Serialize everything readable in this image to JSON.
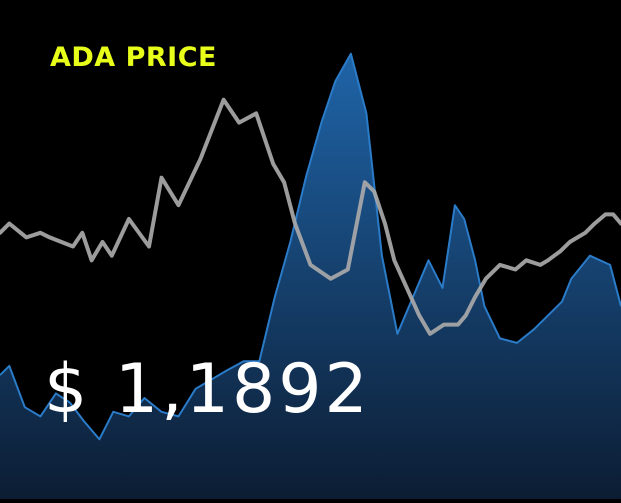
{
  "title": "ADA PRICE",
  "price_display": "$ 1,1892",
  "colors": {
    "background": "#000000",
    "title": "#e8ff1a",
    "price_text": "#ffffff",
    "area_top": "#1f64a8",
    "area_bottom": "#0c1d33",
    "area_stroke": "#2a7bc8",
    "line": "#a9a9a9"
  },
  "chart_data": {
    "type": "area",
    "title": "ADA PRICE",
    "xlim": [
      0,
      40
    ],
    "ylim": [
      0,
      100
    ],
    "grid": false,
    "legend": "none",
    "series": [
      {
        "kind": "area",
        "color": "#1f64a8",
        "x": [
          0,
          0.6,
          1.6,
          2.6,
          3.6,
          4.5,
          5.4,
          6.4,
          7.3,
          8.3,
          9.3,
          10.4,
          11.5,
          12.6,
          13.6,
          14.6,
          15.7,
          16.7,
          17.7,
          18.7,
          19.7,
          20.7,
          21.6,
          22.6,
          23.6,
          24.6,
          25.6,
          26.6,
          27.6,
          28.5,
          29.3,
          29.9,
          30.6,
          31.2,
          32.2,
          33.3,
          34.4,
          35.3,
          36.2,
          36.8,
          38.0,
          39.3,
          40.0
        ],
        "y": [
          27,
          29,
          20,
          18,
          23,
          21,
          17,
          13,
          19,
          18,
          22,
          19,
          18,
          24,
          26,
          28,
          30,
          30,
          44,
          56,
          70,
          82,
          91,
          97,
          84,
          53,
          36,
          44,
          52,
          46,
          64,
          61,
          52,
          42,
          35,
          34,
          37,
          40,
          43,
          48,
          53,
          51,
          42
        ]
      },
      {
        "kind": "line",
        "color": "#a9a9a9",
        "x": [
          0,
          0.6,
          1.7,
          2.6,
          3.2,
          4.7,
          5.3,
          5.9,
          6.6,
          7.2,
          8.3,
          9.6,
          10.4,
          11.5,
          12.9,
          14.4,
          15.4,
          16.5,
          17.6,
          18.3,
          19.0,
          20.0,
          21.3,
          22.4,
          23.5,
          24.1,
          24.8,
          25.4,
          26.2,
          27.0,
          27.7,
          28.6,
          29.5,
          30.0,
          30.6,
          31.3,
          32.2,
          33.2,
          33.9,
          34.8,
          35.3,
          35.7,
          36.1,
          36.7,
          37.2,
          37.7,
          38.3,
          39.0,
          39.5,
          40.0
        ],
        "y": [
          58,
          60,
          57,
          58,
          57,
          55,
          58,
          52,
          56,
          53,
          61,
          55,
          70,
          64,
          74,
          87,
          82,
          84,
          73,
          69,
          60,
          51,
          48,
          50,
          69,
          67,
          60,
          52,
          46,
          40,
          36,
          38,
          38,
          40,
          44,
          48,
          51,
          50,
          52,
          51,
          52,
          53,
          54,
          56,
          57,
          58,
          60,
          62,
          62,
          60
        ]
      }
    ]
  }
}
